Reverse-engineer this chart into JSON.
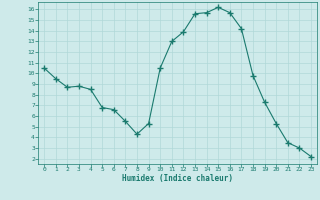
{
  "title": "",
  "xlabel": "Humidex (Indice chaleur)",
  "ylabel": "",
  "x": [
    0,
    1,
    2,
    3,
    4,
    5,
    6,
    7,
    8,
    9,
    10,
    11,
    12,
    13,
    14,
    15,
    16,
    17,
    18,
    19,
    20,
    21,
    22,
    23
  ],
  "y": [
    10.5,
    9.5,
    8.7,
    8.8,
    8.5,
    6.8,
    6.6,
    5.5,
    4.3,
    5.3,
    10.5,
    13.0,
    13.9,
    15.6,
    15.7,
    16.2,
    15.7,
    14.2,
    9.8,
    7.3,
    5.3,
    3.5,
    3.0,
    2.2
  ],
  "line_color": "#1a7a6e",
  "marker": "+",
  "marker_size": 4,
  "bg_color": "#ceeaea",
  "grid_color": "#b0d8d8",
  "tick_color": "#1a7a6e",
  "label_color": "#1a7a6e",
  "xlim": [
    -0.5,
    23.5
  ],
  "ylim": [
    1.5,
    16.7
  ],
  "yticks": [
    2,
    3,
    4,
    5,
    6,
    7,
    8,
    9,
    10,
    11,
    12,
    13,
    14,
    15,
    16
  ],
  "xticks": [
    0,
    1,
    2,
    3,
    4,
    5,
    6,
    7,
    8,
    9,
    10,
    11,
    12,
    13,
    14,
    15,
    16,
    17,
    18,
    19,
    20,
    21,
    22,
    23
  ]
}
